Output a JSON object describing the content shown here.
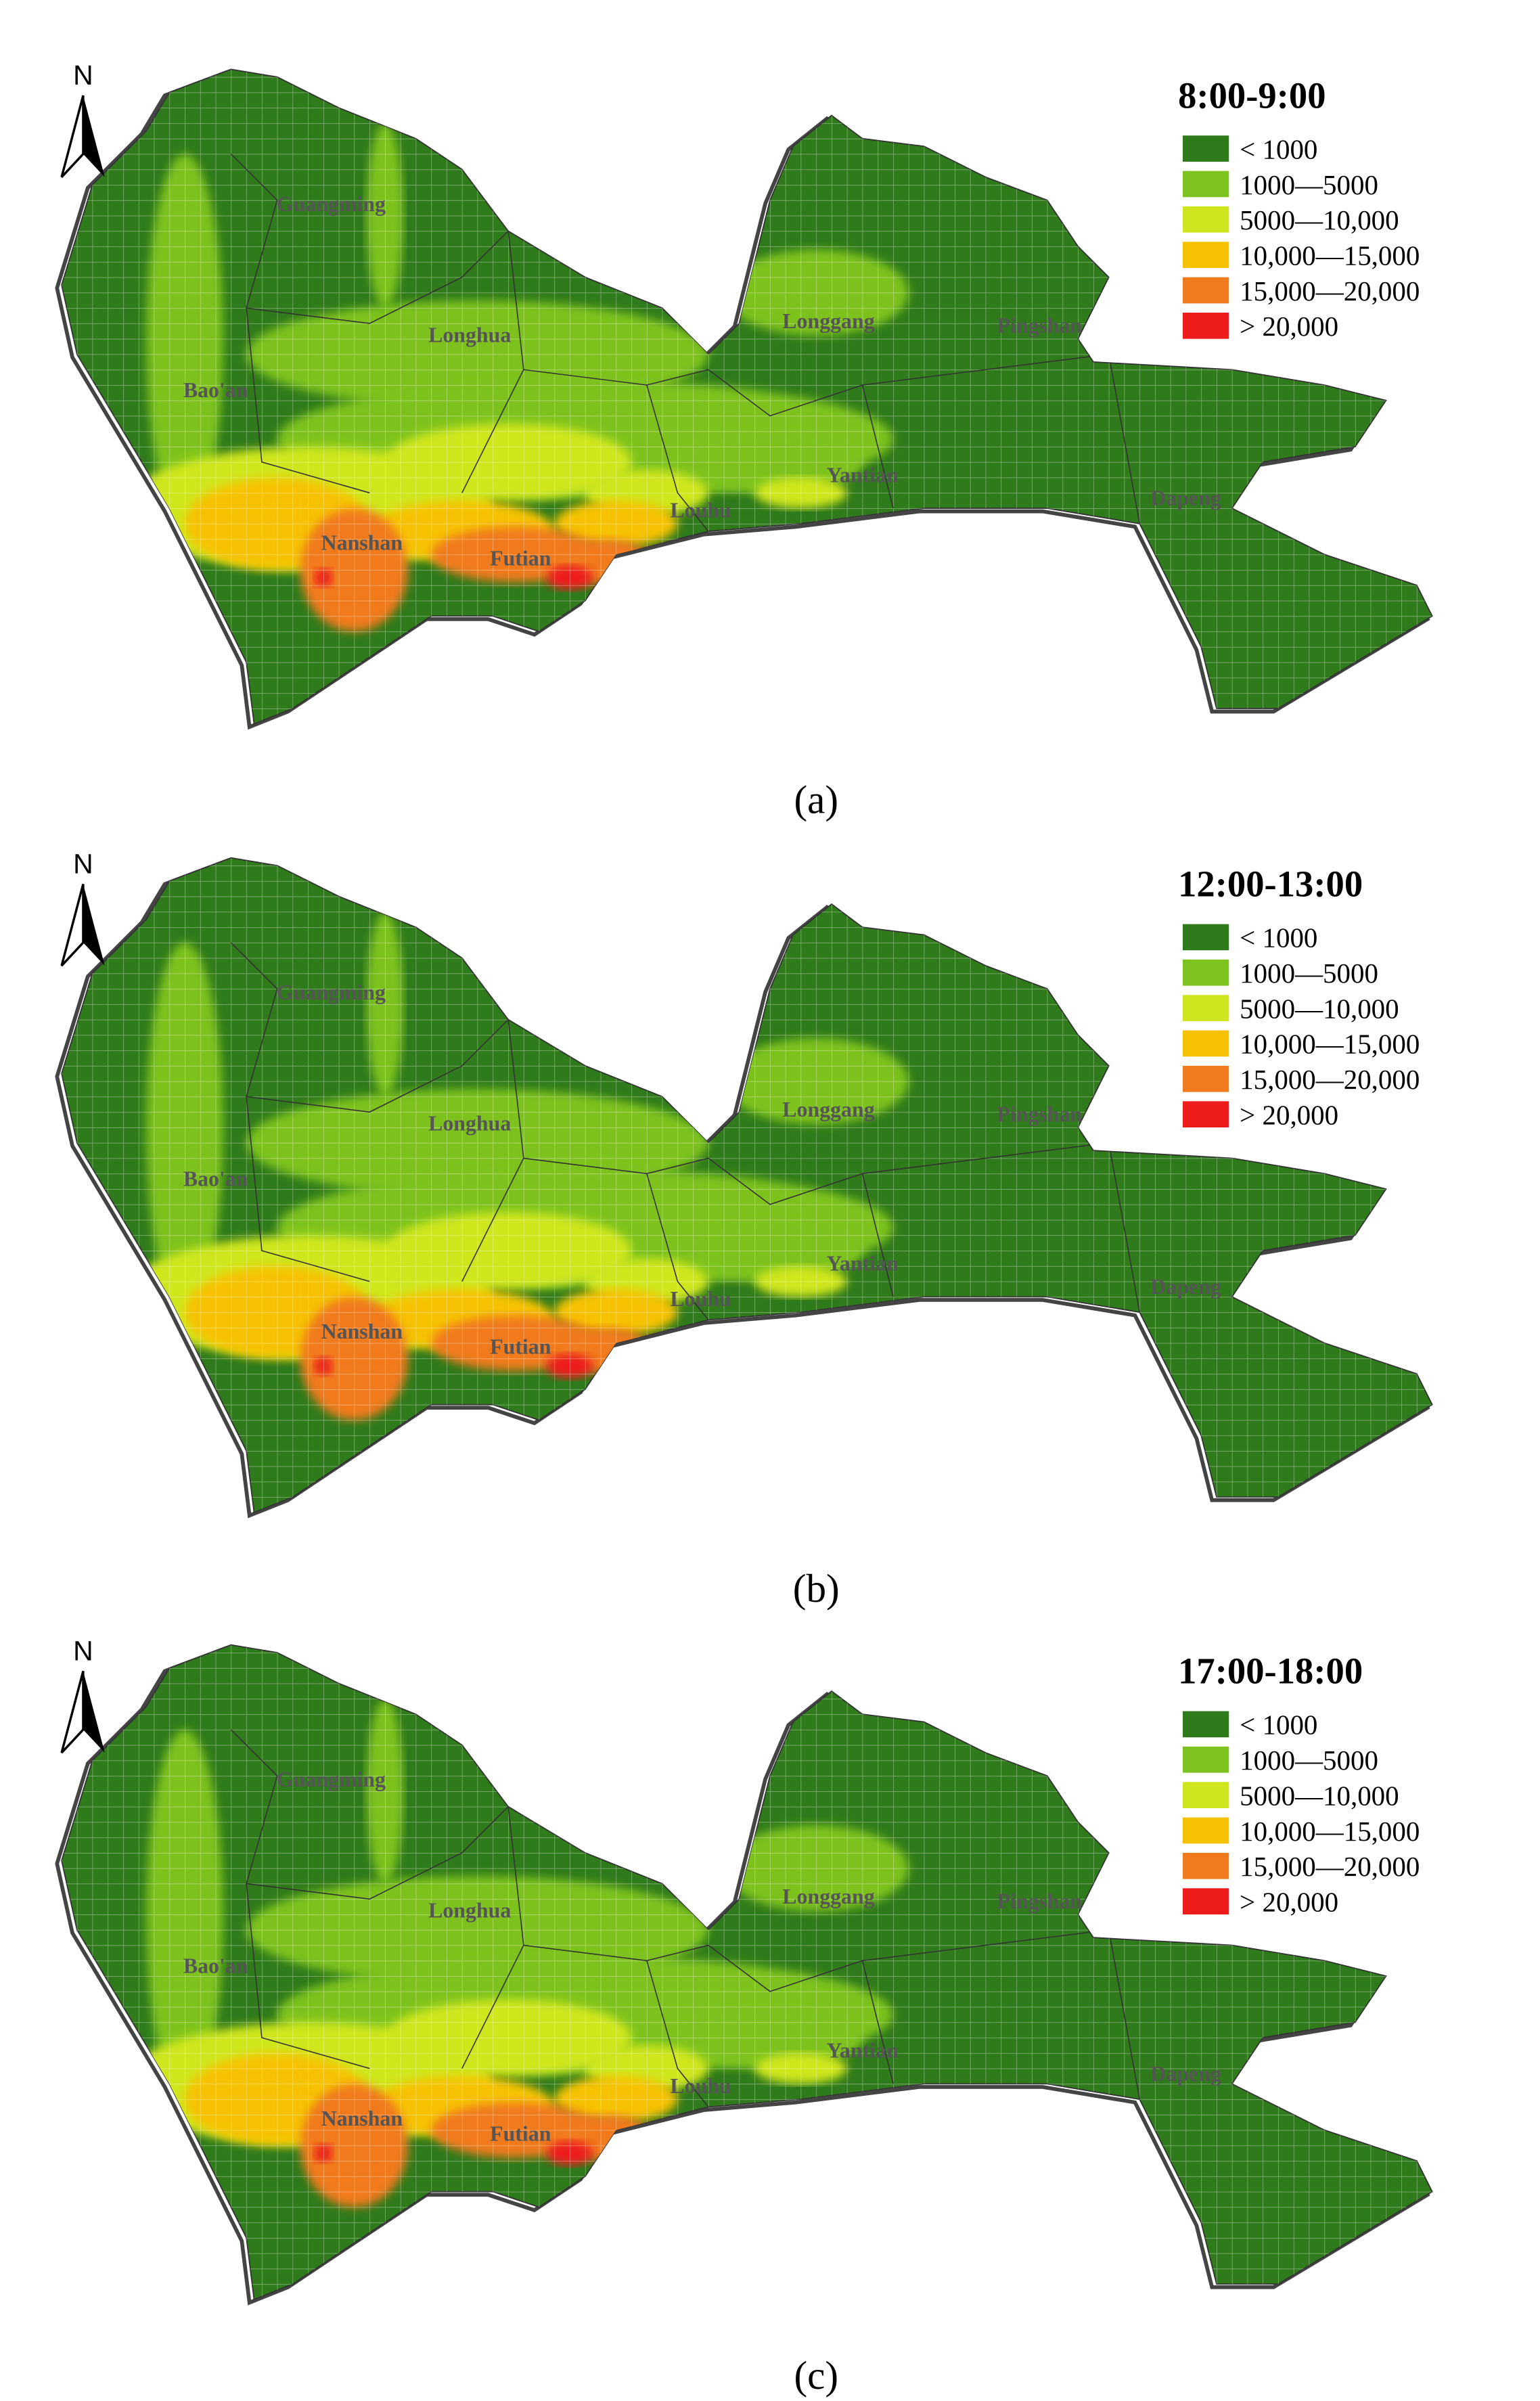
{
  "north": "N",
  "legend": [
    {
      "label": "< 1000",
      "color": "#2f7a1b"
    },
    {
      "label": "1000—5000",
      "color": "#7dc21f"
    },
    {
      "label": "5000—10,000",
      "color": "#cfe61e"
    },
    {
      "label": "10,000—15,000",
      "color": "#f6c200"
    },
    {
      "label": "15,000—20,000",
      "color": "#f07a1e"
    },
    {
      "label": "> 20,000",
      "color": "#ee1b1b"
    }
  ],
  "districts": [
    "Guangming",
    "Longhua",
    "Bao'an",
    "Longgang",
    "Pingshan",
    "Yantian",
    "Louhu",
    "Nanshan",
    "Futian",
    "Dapeng"
  ],
  "panels": [
    {
      "title": "8:00-9:00",
      "caption": "(a)"
    },
    {
      "title": "12:00-13:00",
      "caption": "(b)"
    },
    {
      "title": "17:00-18:00",
      "caption": "(c)"
    }
  ]
}
